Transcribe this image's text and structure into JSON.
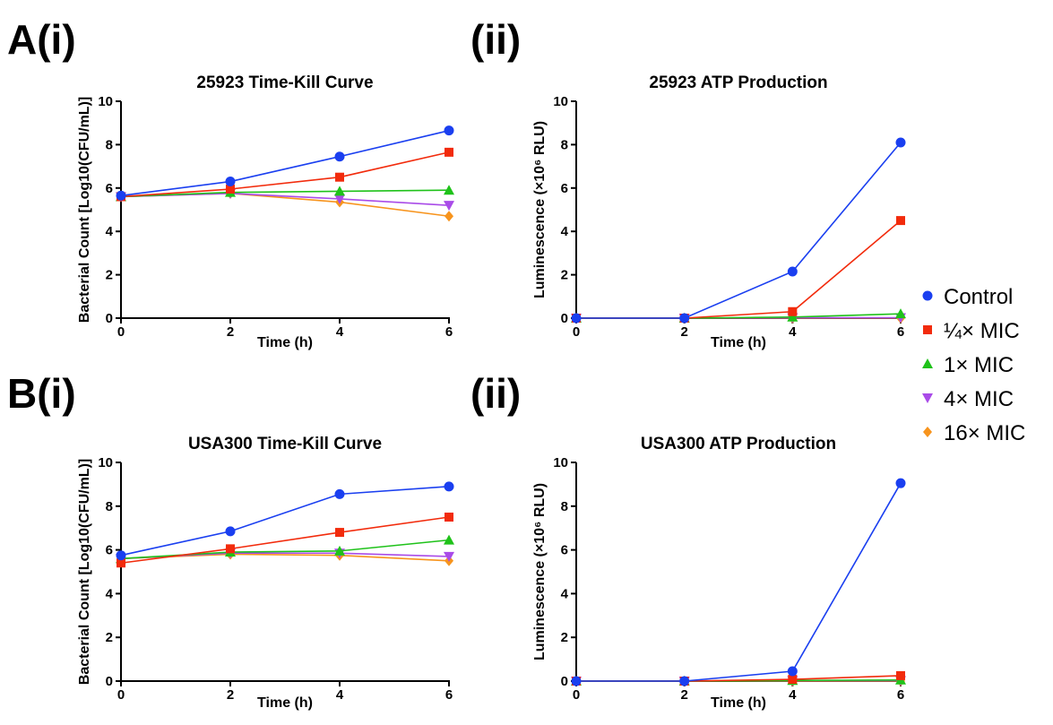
{
  "panel_labels": [
    "A(i)",
    "(ii)",
    "B(i)",
    "(ii)"
  ],
  "legend": [
    {
      "label": "Control",
      "color": "#1a3ff0",
      "marker": "circle"
    },
    {
      "label": "¼× MIC",
      "color": "#f22b0c",
      "marker": "square"
    },
    {
      "label": "1× MIC",
      "color": "#1fc21a",
      "marker": "triangle-up"
    },
    {
      "label": "4× MIC",
      "color": "#a94be8",
      "marker": "triangle-down"
    },
    {
      "label": "16× MIC",
      "color": "#f7941d",
      "marker": "diamond"
    }
  ],
  "chart_data": [
    {
      "type": "line",
      "title": "25923 Time-Kill Curve",
      "xlabel": "Time (h)",
      "ylabel": "Bacterial Count [Log10(CFU/mL)]",
      "x": [
        0,
        2,
        4,
        6
      ],
      "xlim": [
        0,
        6
      ],
      "ylim": [
        0,
        10
      ],
      "xticks": [
        0,
        2,
        4,
        6
      ],
      "yticks": [
        0,
        2,
        4,
        6,
        8,
        10
      ],
      "series": [
        {
          "name": "Control",
          "values": [
            5.65,
            6.3,
            7.45,
            8.65
          ]
        },
        {
          "name": "¼× MIC",
          "values": [
            5.6,
            5.95,
            6.5,
            7.65
          ]
        },
        {
          "name": "1× MIC",
          "values": [
            5.6,
            5.8,
            5.85,
            5.9
          ]
        },
        {
          "name": "4× MIC",
          "values": [
            5.6,
            5.75,
            5.5,
            5.2
          ]
        },
        {
          "name": "16× MIC",
          "values": [
            5.6,
            5.75,
            5.35,
            4.7
          ]
        }
      ]
    },
    {
      "type": "line",
      "title": "25923 ATP Production",
      "xlabel": "Time (h)",
      "ylabel": "Luminescence (×10⁶ RLU)",
      "x": [
        0,
        2,
        4,
        6
      ],
      "xlim": [
        0,
        6
      ],
      "ylim": [
        0,
        10
      ],
      "xticks": [
        0,
        2,
        4,
        6
      ],
      "yticks": [
        0,
        2,
        4,
        6,
        8,
        10
      ],
      "series": [
        {
          "name": "Control",
          "values": [
            0.0,
            0.0,
            2.15,
            8.1
          ]
        },
        {
          "name": "¼× MIC",
          "values": [
            0.0,
            0.0,
            0.3,
            4.5
          ]
        },
        {
          "name": "1× MIC",
          "values": [
            0.0,
            0.0,
            0.05,
            0.2
          ]
        },
        {
          "name": "4× MIC",
          "values": [
            0.0,
            0.0,
            0.02,
            0.02
          ]
        },
        {
          "name": "16× MIC",
          "values": [
            0.0,
            0.0,
            0.0,
            0.0
          ]
        }
      ]
    },
    {
      "type": "line",
      "title": "USA300 Time-Kill Curve",
      "xlabel": "Time (h)",
      "ylabel": "Bacterial Count [Log10(CFU/mL)]",
      "x": [
        0,
        2,
        4,
        6
      ],
      "xlim": [
        0,
        6
      ],
      "ylim": [
        0,
        10
      ],
      "xticks": [
        0,
        2,
        4,
        6
      ],
      "yticks": [
        0,
        2,
        4,
        6,
        8,
        10
      ],
      "series": [
        {
          "name": "Control",
          "values": [
            5.75,
            6.85,
            8.55,
            8.9
          ]
        },
        {
          "name": "¼× MIC",
          "values": [
            5.4,
            6.05,
            6.8,
            7.5
          ]
        },
        {
          "name": "1× MIC",
          "values": [
            5.6,
            5.9,
            5.95,
            6.45
          ]
        },
        {
          "name": "4× MIC",
          "values": [
            5.6,
            5.85,
            5.85,
            5.7
          ]
        },
        {
          "name": "16× MIC",
          "values": [
            5.6,
            5.8,
            5.75,
            5.5
          ]
        }
      ]
    },
    {
      "type": "line",
      "title": "USA300 ATP Production",
      "xlabel": "Time (h)",
      "ylabel": "Luminescence (×10⁶ RLU)",
      "x": [
        0,
        2,
        4,
        6
      ],
      "xlim": [
        0,
        6
      ],
      "ylim": [
        0,
        10
      ],
      "xticks": [
        0,
        2,
        4,
        6
      ],
      "yticks": [
        0,
        2,
        4,
        6,
        8,
        10
      ],
      "series": [
        {
          "name": "Control",
          "values": [
            0.0,
            0.0,
            0.45,
            9.05
          ]
        },
        {
          "name": "¼× MIC",
          "values": [
            0.0,
            0.0,
            0.08,
            0.25
          ]
        },
        {
          "name": "1× MIC",
          "values": [
            0.0,
            0.0,
            0.03,
            0.05
          ]
        },
        {
          "name": "4× MIC",
          "values": [
            0.0,
            0.0,
            0.02,
            0.02
          ]
        },
        {
          "name": "16× MIC",
          "values": [
            0.0,
            0.0,
            0.0,
            0.0
          ]
        }
      ]
    }
  ]
}
